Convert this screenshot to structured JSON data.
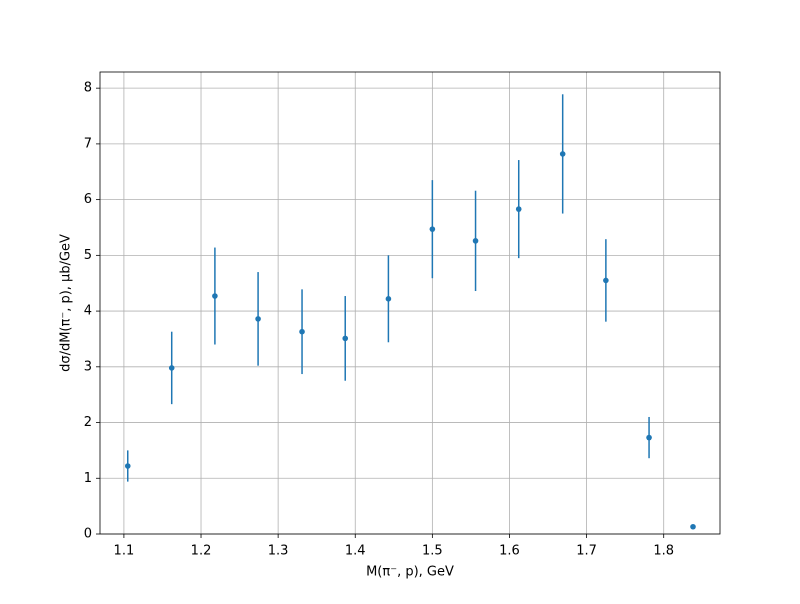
{
  "chart_data": {
    "type": "errorbar",
    "x_label": "M(π⁻, p), GeV",
    "y_label": "dσ/dM(π⁻, p), μb/GeV",
    "x": [
      1.105,
      1.162,
      1.218,
      1.274,
      1.331,
      1.387,
      1.443,
      1.5,
      1.556,
      1.612,
      1.669,
      1.725,
      1.781,
      1.838
    ],
    "values": [
      1.22,
      2.98,
      4.27,
      3.86,
      3.63,
      3.51,
      4.22,
      5.47,
      5.26,
      5.83,
      6.82,
      4.55,
      1.73,
      0.13
    ],
    "errors": [
      0.28,
      0.65,
      0.87,
      0.84,
      0.76,
      0.76,
      0.78,
      0.88,
      0.9,
      0.88,
      1.07,
      0.74,
      0.37,
      0.03
    ],
    "color": "#1f77b4",
    "xlim": [
      1.069,
      1.873
    ],
    "xticks": [
      1.1,
      1.2,
      1.3,
      1.4,
      1.5,
      1.6,
      1.7,
      1.8
    ],
    "ylim": [
      0,
      8.29
    ],
    "yticks": [
      0,
      1,
      2,
      3,
      4,
      5,
      6,
      7,
      8
    ],
    "grid": true
  }
}
